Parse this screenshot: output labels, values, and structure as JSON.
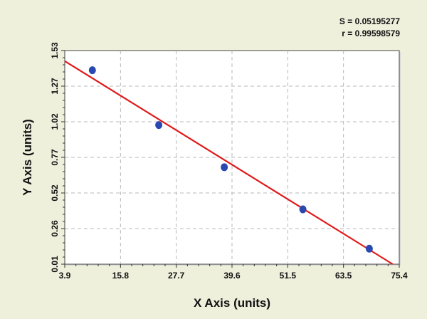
{
  "chart_data": {
    "type": "scatter",
    "xlabel": "X Axis (units)",
    "ylabel": "Y Axis (units)",
    "xlim": [
      3.9,
      75.4
    ],
    "ylim": [
      0.01,
      1.53
    ],
    "x_ticks": [
      "3.9",
      "15.8",
      "27.7",
      "39.6",
      "51.5",
      "63.5",
      "75.4"
    ],
    "y_ticks": [
      "0.01",
      "0.26",
      "0.52",
      "0.77",
      "1.02",
      "1.27",
      "1.53"
    ],
    "grid": true,
    "annotations": [
      "S = 0.05195277",
      "r = 0.99598579"
    ],
    "colors": {
      "points": "#2a49b0",
      "fit_line": "#e01b1b",
      "background": "#eef0dc",
      "plot_area": "#ffffff",
      "grid": "#b8b8b8"
    },
    "series": [
      {
        "type": "scatter",
        "points": [
          {
            "x": 9.8,
            "y": 1.39
          },
          {
            "x": 24.0,
            "y": 1.0
          },
          {
            "x": 38.0,
            "y": 0.7
          },
          {
            "x": 54.8,
            "y": 0.4
          },
          {
            "x": 69.0,
            "y": 0.12
          }
        ]
      },
      {
        "type": "line",
        "points": [
          {
            "x": 3.9,
            "y": 1.455
          },
          {
            "x": 74.0,
            "y": 0.01
          }
        ]
      }
    ]
  }
}
